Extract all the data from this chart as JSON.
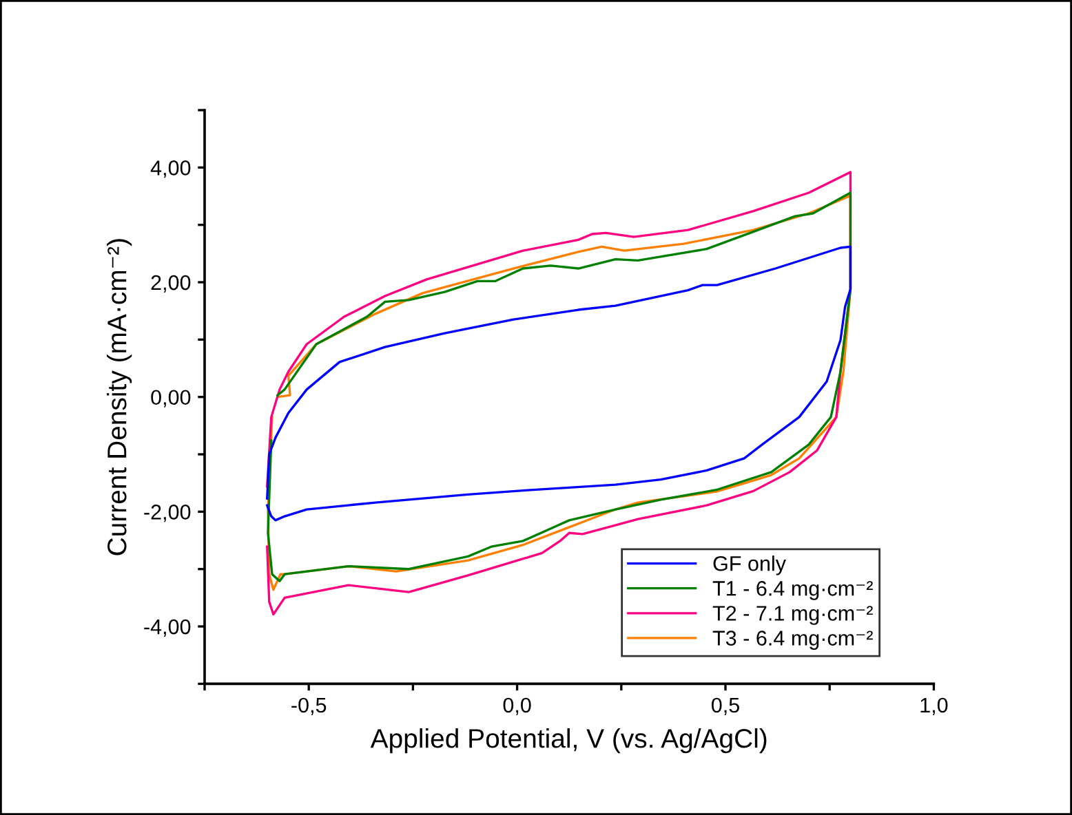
{
  "chart_data": {
    "type": "line",
    "xlabel": "Applied Potential, V (vs. Ag/AgCl)",
    "ylabel": "Current Density (mA·cm⁻²)",
    "xlim": [
      -0.75,
      1.0
    ],
    "ylim": [
      -5,
      5
    ],
    "xticks": [
      {
        "value": -0.75,
        "label": null
      },
      {
        "value": -0.5,
        "label": "-0,5"
      },
      {
        "value": -0.25,
        "label": null
      },
      {
        "value": 0,
        "label": "0,0"
      },
      {
        "value": 0.25,
        "label": null
      },
      {
        "value": 0.5,
        "label": "0,5"
      },
      {
        "value": 0.75,
        "label": null
      },
      {
        "value": 1.0,
        "label": "1,0"
      }
    ],
    "yticks": [
      {
        "value": -5,
        "label": null
      },
      {
        "value": -4,
        "label": "-4,00"
      },
      {
        "value": -3,
        "label": null
      },
      {
        "value": -2,
        "label": "-2,00"
      },
      {
        "value": -1,
        "label": null
      },
      {
        "value": 0,
        "label": "0,00"
      },
      {
        "value": 1,
        "label": null
      },
      {
        "value": 2,
        "label": "2,00"
      },
      {
        "value": 3,
        "label": null
      },
      {
        "value": 4,
        "label": "4,00"
      },
      {
        "value": 5,
        "label": null
      }
    ],
    "grid": false,
    "legend": "bottom right",
    "line_style": "solid",
    "marker": "none",
    "series": [
      {
        "name": "GF only",
        "color": "#0000ff",
        "x": [
          -0.6,
          -0.595,
          -0.58,
          -0.549,
          -0.505,
          -0.426,
          -0.317,
          -0.174,
          -0.009,
          0.147,
          0.236,
          0.41,
          0.445,
          0.48,
          0.62,
          0.776,
          0.8,
          0.8,
          0.787,
          0.776,
          0.743,
          0.677,
          0.588,
          0.545,
          0.455,
          0.345,
          0.236,
          0.014,
          -0.118,
          -0.34,
          -0.505,
          -0.558,
          -0.58,
          -0.59,
          -0.6
        ],
        "values": [
          -1.77,
          -1.0,
          -0.71,
          -0.28,
          0.13,
          0.61,
          0.87,
          1.11,
          1.35,
          1.52,
          1.59,
          1.86,
          1.95,
          1.95,
          2.24,
          2.6,
          2.62,
          1.88,
          1.57,
          0.99,
          0.27,
          -0.35,
          -0.83,
          -1.07,
          -1.28,
          -1.44,
          -1.53,
          -1.63,
          -1.7,
          -1.84,
          -1.96,
          -2.08,
          -2.15,
          -2.08,
          -1.89
        ]
      },
      {
        "name": "T1 - 6.4 mg·cm⁻²",
        "color": "#008000",
        "x": [
          -0.575,
          -0.558,
          -0.482,
          -0.36,
          -0.317,
          -0.26,
          -0.174,
          -0.095,
          -0.052,
          0.014,
          0.08,
          0.147,
          0.236,
          0.29,
          0.455,
          0.567,
          0.667,
          0.71,
          0.8,
          0.8,
          0.776,
          0.753,
          0.7,
          0.61,
          0.478,
          0.345,
          0.236,
          0.125,
          0.014,
          -0.062,
          -0.118,
          -0.26,
          -0.405,
          -0.558,
          -0.57,
          -0.588,
          -0.598,
          -0.59
        ],
        "values": [
          0.03,
          0.13,
          0.92,
          1.4,
          1.66,
          1.69,
          1.83,
          2.02,
          2.02,
          2.24,
          2.29,
          2.24,
          2.4,
          2.38,
          2.58,
          2.88,
          3.15,
          3.2,
          3.56,
          1.88,
          0.44,
          -0.35,
          -0.83,
          -1.31,
          -1.62,
          -1.79,
          -1.96,
          -2.15,
          -2.51,
          -2.61,
          -2.78,
          -3.0,
          -2.95,
          -3.09,
          -3.21,
          -3.09,
          -2.37,
          -0.76
        ]
      },
      {
        "name": "T2 - 7.1 mg·cm⁻²",
        "color": "#ff0080",
        "x": [
          -0.6,
          -0.59,
          -0.57,
          -0.549,
          -0.505,
          -0.415,
          -0.317,
          -0.217,
          0.014,
          0.147,
          0.18,
          0.213,
          0.28,
          0.41,
          0.567,
          0.7,
          0.8,
          0.8,
          0.776,
          0.766,
          0.72,
          0.654,
          0.567,
          0.455,
          0.29,
          0.157,
          0.125,
          0.103,
          0.06,
          -0.118,
          -0.26,
          -0.405,
          -0.558,
          -0.585,
          -0.595,
          -0.6
        ],
        "values": [
          -1.56,
          -0.35,
          0.13,
          0.44,
          0.92,
          1.4,
          1.76,
          2.05,
          2.55,
          2.74,
          2.84,
          2.86,
          2.79,
          2.91,
          3.24,
          3.56,
          3.92,
          1.88,
          0.44,
          -0.35,
          -0.93,
          -1.31,
          -1.64,
          -1.89,
          -2.13,
          -2.39,
          -2.37,
          -2.51,
          -2.72,
          -3.11,
          -3.4,
          -3.28,
          -3.5,
          -3.79,
          -3.57,
          -2.61
        ]
      },
      {
        "name": "T3 - 6.4 mg·cm⁻²",
        "color": "#ff8000",
        "x": [
          -0.575,
          -0.545,
          -0.549,
          -0.482,
          -0.34,
          -0.227,
          -0.009,
          0.147,
          0.203,
          0.257,
          0.4,
          0.567,
          0.7,
          0.8,
          0.8,
          0.783,
          0.766,
          0.677,
          0.61,
          0.534,
          0.478,
          0.29,
          0.236,
          0.125,
          0.014,
          -0.118,
          -0.29,
          -0.405,
          -0.558,
          -0.568,
          -0.585,
          -0.595,
          -0.598,
          -0.588
        ],
        "values": [
          0.0,
          0.03,
          0.37,
          0.92,
          1.45,
          1.81,
          2.24,
          2.53,
          2.62,
          2.55,
          2.67,
          2.91,
          3.2,
          3.51,
          1.88,
          0.44,
          -0.35,
          -1.07,
          -1.36,
          -1.53,
          -1.65,
          -1.84,
          -1.96,
          -2.27,
          -2.58,
          -2.85,
          -3.04,
          -2.95,
          -3.09,
          -3.09,
          -3.36,
          -3.09,
          -1.96,
          -0.35
        ]
      }
    ]
  }
}
